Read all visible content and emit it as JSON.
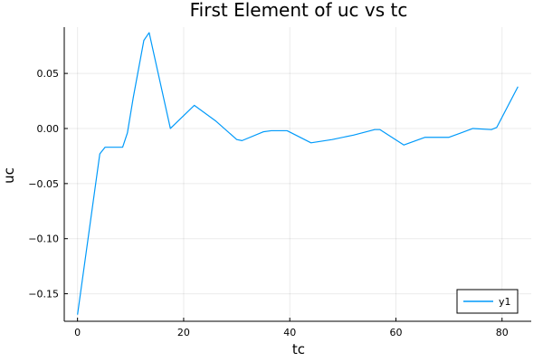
{
  "chart_data": {
    "type": "line",
    "title": "First Element of uc vs tc",
    "xlabel": "tc",
    "ylabel": "uc",
    "xlim": [
      -2.5,
      85.5
    ],
    "ylim": [
      -0.175,
      0.092
    ],
    "xticks": [
      0,
      20,
      40,
      60,
      80
    ],
    "xtick_labels": [
      "0",
      "20",
      "40",
      "60",
      "80"
    ],
    "yticks": [
      -0.15,
      -0.1,
      -0.05,
      0.0,
      0.05
    ],
    "ytick_labels": [
      "−0.15",
      "−0.10",
      "−0.05",
      "0.00",
      "0.05"
    ],
    "grid": true,
    "legend": "bottom-right",
    "series": [
      {
        "name": "y1",
        "color": "#009AFA",
        "x": [
          0,
          4.2,
          5.2,
          8.5,
          9.4,
          10.5,
          12.5,
          13.5,
          17.5,
          22,
          26,
          30,
          31,
          35,
          36.5,
          39.5,
          44,
          48,
          52,
          56,
          57,
          61.5,
          65.5,
          70,
          74.5,
          78,
          79,
          83
        ],
        "y": [
          -0.169,
          -0.023,
          -0.017,
          -0.017,
          -0.004,
          0.028,
          0.08,
          0.087,
          0.0,
          0.021,
          0.007,
          -0.01,
          -0.011,
          -0.003,
          -0.002,
          -0.002,
          -0.013,
          -0.01,
          -0.006,
          -0.001,
          -0.001,
          -0.015,
          -0.008,
          -0.008,
          0.0,
          -0.001,
          0.001,
          0.038
        ]
      }
    ]
  }
}
